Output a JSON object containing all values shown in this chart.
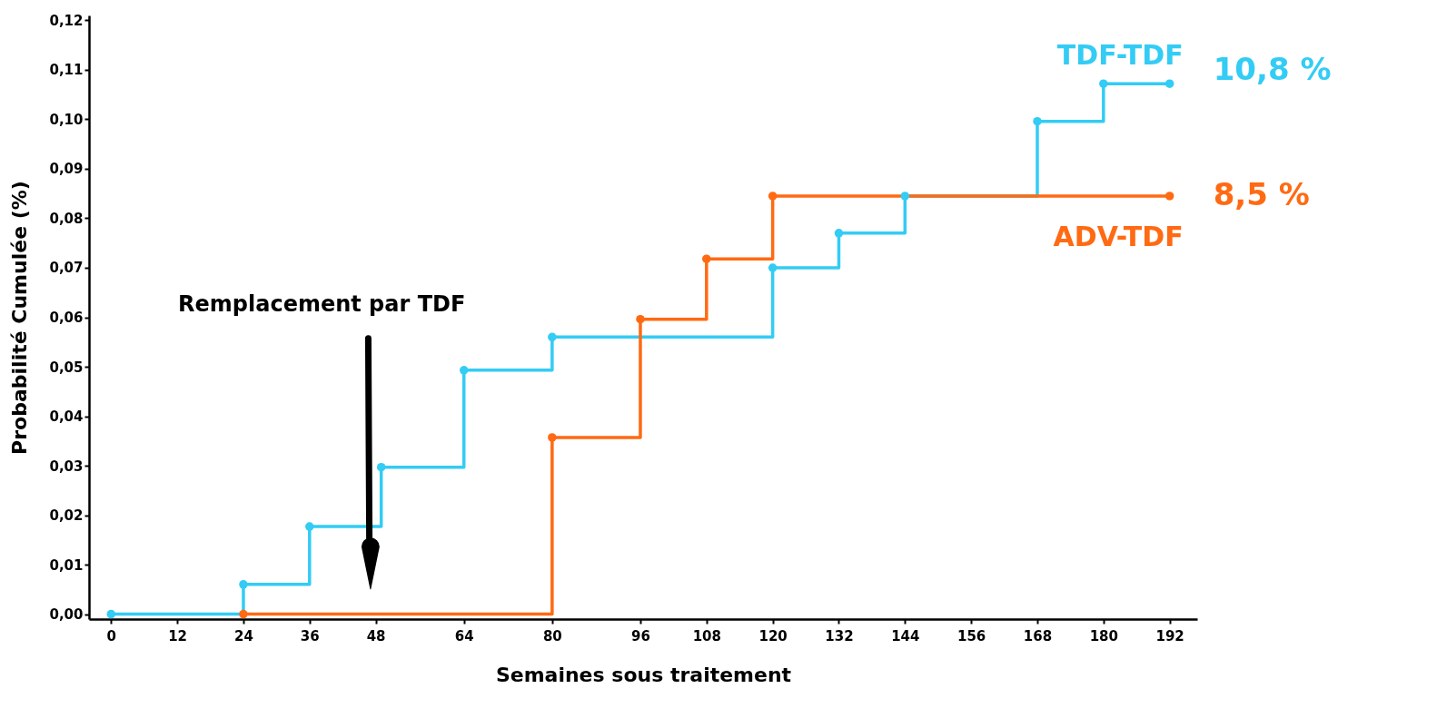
{
  "chart_data": {
    "type": "step",
    "xlabel": "Semaines sous traitement",
    "ylabel": "Probabilité Cumulée (%)",
    "xlim": [
      -4,
      197
    ],
    "xticks": [
      0,
      12,
      24,
      36,
      48,
      64,
      80,
      96,
      108,
      120,
      132,
      144,
      156,
      168,
      180,
      192
    ],
    "ylim": [
      -0.001,
      0.121
    ],
    "yticks": [
      {
        "value": 0,
        "label": "0,00"
      },
      {
        "value": 0.01,
        "label": "0,01"
      },
      {
        "value": 0.02,
        "label": "0,02"
      },
      {
        "value": 0.03,
        "label": "0,03"
      },
      {
        "value": 0.04,
        "label": "0,04"
      },
      {
        "value": 0.05,
        "label": "0,05"
      },
      {
        "value": 0.06,
        "label": "0,06"
      },
      {
        "value": 0.07,
        "label": "0,07"
      },
      {
        "value": 0.08,
        "label": "0,08"
      },
      {
        "value": 0.09,
        "label": "0,09"
      },
      {
        "value": 0.1,
        "label": "0,10"
      },
      {
        "value": 0.11,
        "label": "0,11"
      },
      {
        "value": 0.12,
        "label": "0,12"
      }
    ],
    "grid": false,
    "legend": false,
    "marker": "circle",
    "line_style": "solid",
    "series": [
      {
        "name": "TDF-TDF",
        "color": "#33ccf5",
        "x": [
          0,
          24,
          36,
          49,
          64,
          80,
          120,
          132,
          144,
          168,
          180,
          192
        ],
        "values": [
          0,
          0.006,
          0.0177,
          0.0297,
          0.0493,
          0.056,
          0.07,
          0.077,
          0.0845,
          0.0996,
          0.1072,
          0.1072
        ]
      },
      {
        "name": "ADV-TDF",
        "color": "#ff6a13",
        "x": [
          24,
          80,
          96,
          108,
          120,
          192
        ],
        "values": [
          0,
          0.0357,
          0.0596,
          0.0718,
          0.0845,
          0.0845
        ]
      }
    ],
    "annotations": [
      "Remplacement par TDF",
      {
        "text": "10,8 %",
        "x": 192,
        "y": 0.1072
      },
      {
        "text": "8,5 %",
        "x": 192,
        "y": 0.0845
      }
    ]
  }
}
